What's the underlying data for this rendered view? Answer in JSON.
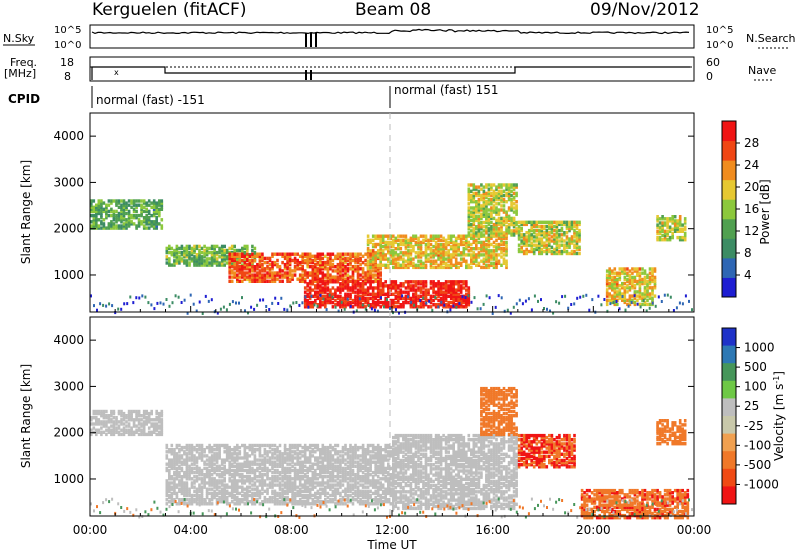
{
  "header": {
    "station": "Kerguelen (fitACF)",
    "beam": "Beam 08",
    "date": "09/Nov/2012"
  },
  "noise_panel": {
    "left_label": "N.Sky",
    "left_ticks": [
      "10^5",
      "10^0"
    ],
    "right_label": "N.Search",
    "right_ticks": [
      "10^5",
      "10^0"
    ]
  },
  "freq_panel": {
    "left_label_1": "Freq.",
    "left_label_2": "[MHz]",
    "left_ticks": [
      "18",
      "8"
    ],
    "right_label": "Nave",
    "right_ticks": [
      "60",
      "0"
    ]
  },
  "cpid": {
    "label": "CPID",
    "modes": [
      "normal (fast) -151",
      "normal (fast) 151"
    ]
  },
  "colors": {
    "power_scale": [
      "#1e1ed2",
      "#2e66b4",
      "#3c8c64",
      "#50a050",
      "#8cc83c",
      "#e6c832",
      "#f08c1e",
      "#f04614",
      "#f01414"
    ],
    "velocity_scale": [
      "#1e32c8",
      "#2d78b4",
      "#46965a",
      "#6ec846",
      "#bebebe",
      "#c8c8aa",
      "#f0a050",
      "#f07828",
      "#f04a14",
      "#f01414"
    ]
  },
  "chart_data": [
    {
      "type": "heatmap",
      "panel": "power",
      "ylabel": "Slant Range [km]",
      "y_ticks": [
        "1000",
        "2000",
        "3000",
        "4000"
      ],
      "ylim": [
        0,
        4500
      ],
      "colorbar_label": "Power [dB]",
      "colorbar_ticks": [
        "4",
        "8",
        "12",
        "16",
        "20",
        "24",
        "28"
      ],
      "colorbar_range": [
        0,
        32
      ],
      "bands": [
        {
          "t0": 0.0,
          "t1": 2.9,
          "r0": 2050,
          "r1": 2650,
          "value": 12
        },
        {
          "t0": 3.0,
          "t1": 6.5,
          "r0": 1250,
          "r1": 1700,
          "value": 14
        },
        {
          "t0": 5.5,
          "t1": 11.5,
          "r0": 900,
          "r1": 1500,
          "value": 26
        },
        {
          "t0": 8.5,
          "t1": 15.0,
          "r0": 350,
          "r1": 900,
          "value": 30
        },
        {
          "t0": 11.0,
          "t1": 16.5,
          "r0": 1200,
          "r1": 1900,
          "value": 20
        },
        {
          "t0": 15.0,
          "t1": 17.0,
          "r0": 1900,
          "r1": 3000,
          "value": 18
        },
        {
          "t0": 17.0,
          "t1": 19.5,
          "r0": 1500,
          "r1": 2200,
          "value": 18
        },
        {
          "t0": 20.5,
          "t1": 22.5,
          "r0": 400,
          "r1": 1200,
          "value": 20
        },
        {
          "t0": 22.5,
          "t1": 23.7,
          "r0": 1800,
          "r1": 2300,
          "value": 18
        }
      ]
    },
    {
      "type": "heatmap",
      "panel": "velocity",
      "ylabel": "Slant Range [km]",
      "y_ticks": [
        "1000",
        "2000",
        "3000",
        "4000"
      ],
      "ylim": [
        0,
        4500
      ],
      "colorbar_label": "Velocity [m s^-1]",
      "colorbar_ticks": [
        "1000",
        "500",
        "100",
        "25",
        "-25",
        "-100",
        "-500",
        "-1000"
      ],
      "bands": [
        {
          "t0": 0.0,
          "t1": 2.9,
          "r0": 2000,
          "r1": 2500,
          "value": 0
        },
        {
          "t0": 3.0,
          "t1": 12.0,
          "r0": 500,
          "r1": 1800,
          "value": 0
        },
        {
          "t0": 12.0,
          "t1": 17.0,
          "r0": 400,
          "r1": 2000,
          "value": 0
        },
        {
          "t0": 15.5,
          "t1": 17.0,
          "r0": 2000,
          "r1": 3000,
          "value": -300
        },
        {
          "t0": 17.0,
          "t1": 19.3,
          "r0": 1300,
          "r1": 2000,
          "value": -500
        },
        {
          "t0": 19.5,
          "t1": 23.8,
          "r0": 200,
          "r1": 800,
          "value": -400
        },
        {
          "t0": 22.5,
          "t1": 23.7,
          "r0": 1800,
          "r1": 2300,
          "value": -300
        }
      ],
      "x_ticks": [
        "00:00",
        "04:00",
        "08:00",
        "12:00",
        "16:00",
        "20:00",
        "00:00"
      ],
      "xlabel": "Time UT"
    }
  ]
}
